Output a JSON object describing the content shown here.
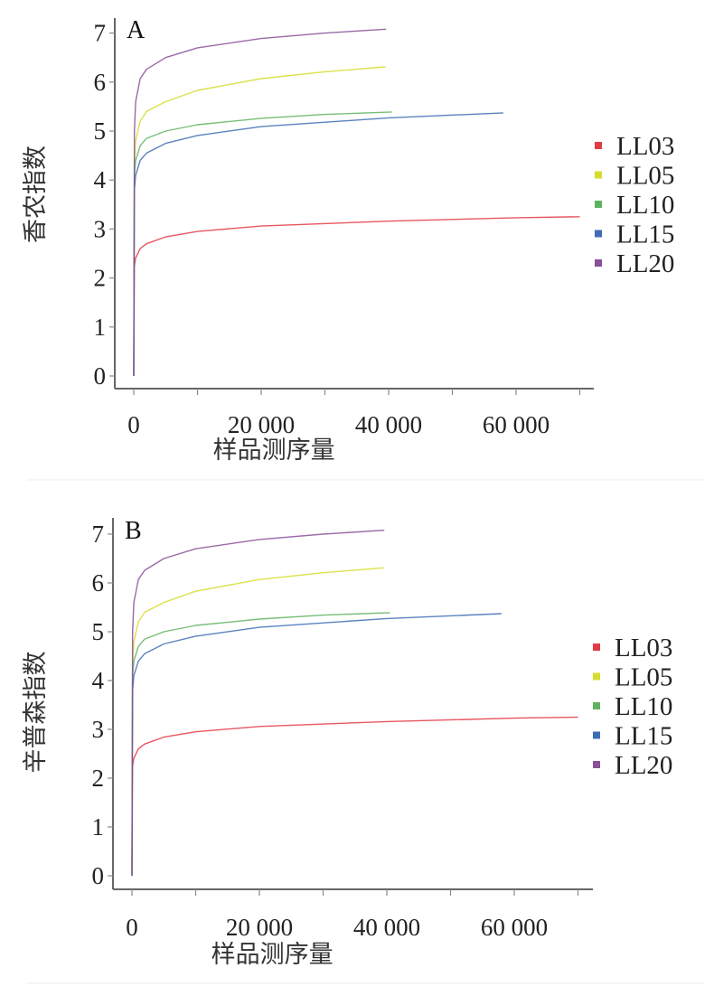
{
  "chart_data": [
    {
      "panel_label": "A",
      "type": "line",
      "title": "",
      "xlabel": "样品测序量",
      "ylabel": "香农指数",
      "xlim": [
        0,
        72000
      ],
      "ylim": [
        0,
        7
      ],
      "xticks": [
        0,
        10000,
        20000,
        30000,
        40000,
        50000,
        60000,
        70000
      ],
      "xtick_labels": [
        "0",
        "20 000",
        "40 000",
        "60 000"
      ],
      "xtick_label_values": [
        0,
        20000,
        40000,
        60000
      ],
      "yticks": [
        "0",
        "1",
        "2",
        "3",
        "4",
        "5",
        "6",
        "7"
      ],
      "legend_position": "right",
      "series": [
        {
          "name": "LL03",
          "color": "#e33a44",
          "x": [
            0,
            100,
            300,
            1000,
            2000,
            5000,
            10000,
            20000,
            40000,
            60000,
            70000
          ],
          "y": [
            0,
            2.24,
            2.41,
            2.6,
            2.7,
            2.84,
            2.95,
            3.06,
            3.16,
            3.23,
            3.25
          ]
        },
        {
          "name": "LL05",
          "color": "#d6dc2a",
          "x": [
            0,
            100,
            300,
            1000,
            2000,
            5000,
            10000,
            20000,
            30000,
            39500
          ],
          "y": [
            0,
            4.3,
            4.8,
            5.2,
            5.4,
            5.6,
            5.83,
            6.07,
            6.21,
            6.31
          ]
        },
        {
          "name": "LL10",
          "color": "#5fb35f",
          "x": [
            0,
            100,
            300,
            1000,
            2000,
            5000,
            10000,
            20000,
            30000,
            40500
          ],
          "y": [
            0,
            4.1,
            4.4,
            4.7,
            4.85,
            5.0,
            5.13,
            5.26,
            5.34,
            5.39
          ]
        },
        {
          "name": "LL15",
          "color": "#3e6db4",
          "x": [
            0,
            100,
            300,
            1000,
            2000,
            5000,
            10000,
            20000,
            40000,
            58000
          ],
          "y": [
            0,
            3.8,
            4.1,
            4.4,
            4.55,
            4.75,
            4.91,
            5.09,
            5.27,
            5.37
          ]
        },
        {
          "name": "LL20",
          "color": "#8a4f98",
          "x": [
            0,
            100,
            300,
            1000,
            2000,
            5000,
            10000,
            20000,
            30000,
            39600
          ],
          "y": [
            0,
            5.0,
            5.6,
            6.07,
            6.26,
            6.5,
            6.7,
            6.89,
            7.0,
            7.08
          ]
        }
      ]
    },
    {
      "panel_label": "B",
      "type": "line",
      "title": "",
      "xlabel": "样品测序量",
      "ylabel": "辛普森指数",
      "xlim": [
        0,
        72000
      ],
      "ylim": [
        0,
        7
      ],
      "xticks": [
        0,
        10000,
        20000,
        30000,
        40000,
        50000,
        60000,
        70000
      ],
      "xtick_labels": [
        "0",
        "20 000",
        "40 000",
        "60 000"
      ],
      "xtick_label_values": [
        0,
        20000,
        40000,
        60000
      ],
      "yticks": [
        "0",
        "1",
        "2",
        "3",
        "4",
        "5",
        "6",
        "7"
      ],
      "legend_position": "right",
      "series": [
        {
          "name": "LL03",
          "color": "#e33a44",
          "x": [
            0,
            100,
            300,
            1000,
            2000,
            5000,
            10000,
            20000,
            40000,
            60000,
            70000
          ],
          "y": [
            0,
            2.24,
            2.41,
            2.6,
            2.7,
            2.84,
            2.95,
            3.06,
            3.16,
            3.23,
            3.25
          ]
        },
        {
          "name": "LL05",
          "color": "#d6dc2a",
          "x": [
            0,
            100,
            300,
            1000,
            2000,
            5000,
            10000,
            20000,
            30000,
            39500
          ],
          "y": [
            0,
            4.3,
            4.8,
            5.2,
            5.4,
            5.6,
            5.83,
            6.07,
            6.21,
            6.31
          ]
        },
        {
          "name": "LL10",
          "color": "#5fb35f",
          "x": [
            0,
            100,
            300,
            1000,
            2000,
            5000,
            10000,
            20000,
            30000,
            40500
          ],
          "y": [
            0,
            4.1,
            4.4,
            4.7,
            4.85,
            5.0,
            5.13,
            5.26,
            5.34,
            5.39
          ]
        },
        {
          "name": "LL15",
          "color": "#3e6db4",
          "x": [
            0,
            100,
            300,
            1000,
            2000,
            5000,
            10000,
            20000,
            40000,
            58000
          ],
          "y": [
            0,
            3.8,
            4.1,
            4.4,
            4.55,
            4.75,
            4.91,
            5.09,
            5.27,
            5.37
          ]
        },
        {
          "name": "LL20",
          "color": "#8a4f98",
          "x": [
            0,
            100,
            300,
            1000,
            2000,
            5000,
            10000,
            20000,
            30000,
            39600
          ],
          "y": [
            0,
            5.0,
            5.6,
            6.07,
            6.26,
            6.5,
            6.7,
            6.89,
            7.0,
            7.08
          ]
        }
      ]
    }
  ]
}
